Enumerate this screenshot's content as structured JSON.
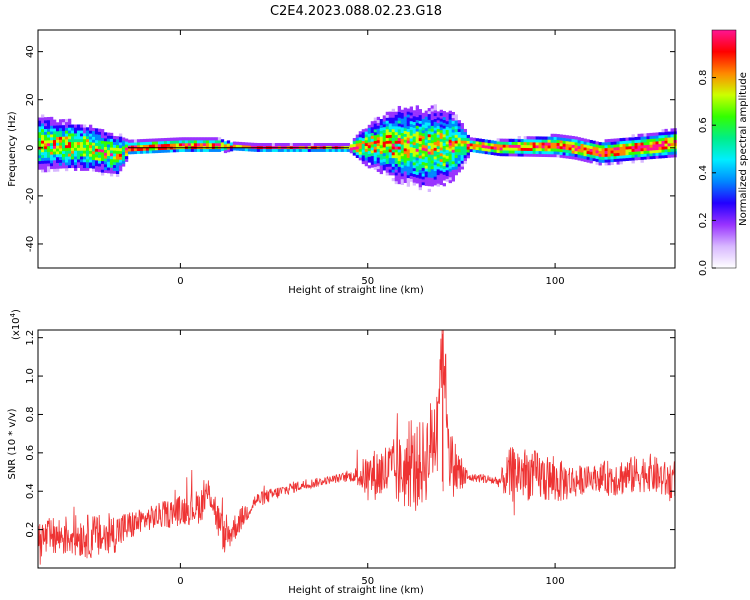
{
  "figure": {
    "title": "C2E4.2023.088.02.23.G18"
  },
  "colors": {
    "snr_line": "#ee3333",
    "axis": "#000000",
    "background": "#ffffff",
    "colormap": [
      "#ffffff",
      "#d8b8ff",
      "#9933ff",
      "#2200ff",
      "#0088ff",
      "#00eeff",
      "#00ee88",
      "#33ff00",
      "#ccff00",
      "#ff8800",
      "#ff0000",
      "#ff1493"
    ]
  },
  "chart_data": [
    {
      "type": "heatmap",
      "title": "",
      "xlabel": "Height of straight line (km)",
      "ylabel": "Frequency (Hz)",
      "xlim": [
        -38,
        132
      ],
      "ylim": [
        -50,
        49
      ],
      "xticks": [
        0,
        50,
        100
      ],
      "yticks": [
        -40,
        -20,
        0,
        20,
        40
      ],
      "ridge": [
        {
          "x": -38,
          "f": 2
        },
        {
          "x": -30,
          "f": 1
        },
        {
          "x": -25,
          "f": 0
        },
        {
          "x": -20,
          "f": -2
        },
        {
          "x": -17,
          "f": -3
        },
        {
          "x": -14,
          "f": 0
        },
        {
          "x": 0,
          "f": 1
        },
        {
          "x": 10,
          "f": 1
        },
        {
          "x": 20,
          "f": 0
        },
        {
          "x": 45,
          "f": 0
        },
        {
          "x": 55,
          "f": 2
        },
        {
          "x": 65,
          "f": 0
        },
        {
          "x": 75,
          "f": 1
        },
        {
          "x": 77,
          "f": 1
        },
        {
          "x": 85,
          "f": 0
        },
        {
          "x": 100,
          "f": 1
        },
        {
          "x": 105,
          "f": 0
        },
        {
          "x": 112,
          "f": -2
        },
        {
          "x": 122,
          "f": 0
        },
        {
          "x": 132,
          "f": 2
        }
      ],
      "spread": [
        {
          "x": -38,
          "w": 8
        },
        {
          "x": -17,
          "w": 6
        },
        {
          "x": -14,
          "w": 2
        },
        {
          "x": 5,
          "w": 2
        },
        {
          "x": 10,
          "w": 2
        },
        {
          "x": 14,
          "w": 1
        },
        {
          "x": 45,
          "w": 1
        },
        {
          "x": 48,
          "w": 5
        },
        {
          "x": 58,
          "w": 11
        },
        {
          "x": 67,
          "w": 12
        },
        {
          "x": 73,
          "w": 10
        },
        {
          "x": 77,
          "w": 2
        },
        {
          "x": 100,
          "w": 3
        },
        {
          "x": 105,
          "w": 3
        },
        {
          "x": 132,
          "w": 4
        }
      ],
      "colorbar": {
        "label": "Normalized spectral amplitude",
        "range": [
          0,
          1
        ],
        "ticks": [
          "0.0",
          "0.2",
          "0.4",
          "0.6",
          "0.8"
        ]
      }
    },
    {
      "type": "line",
      "title": "",
      "xlabel": "Height of straight line (km)",
      "ylabel": "SNR (10 * v/v)",
      "multiplier": "(x10",
      "multiplier_exp": "4",
      "multiplier_close": ")",
      "xlim": [
        -38,
        132
      ],
      "ylim": [
        0,
        1.24
      ],
      "xticks": [
        0,
        50,
        100
      ],
      "yticks": [
        "0.2",
        "0.4",
        "0.6",
        "0.8",
        "1.0",
        "1.2"
      ],
      "series": [
        {
          "x": [
            -38,
            -30,
            -20,
            -10,
            0,
            5,
            8,
            10,
            12,
            20,
            30,
            40,
            46,
            50,
            55,
            60,
            65,
            68,
            70,
            72,
            75,
            77,
            80,
            85,
            90,
            95,
            100,
            105,
            110,
            115,
            120,
            125,
            130,
            132
          ],
          "y": [
            0.15,
            0.17,
            0.16,
            0.25,
            0.3,
            0.32,
            0.4,
            0.25,
            0.15,
            0.35,
            0.42,
            0.46,
            0.48,
            0.48,
            0.5,
            0.5,
            0.55,
            0.7,
            1.22,
            0.55,
            0.48,
            0.47,
            0.47,
            0.45,
            0.5,
            0.48,
            0.45,
            0.45,
            0.47,
            0.47,
            0.48,
            0.5,
            0.45,
            0.47
          ],
          "amplitude": [
            {
              "x": -38,
              "a": 0.1
            },
            {
              "x": -20,
              "a": 0.12
            },
            {
              "x": -10,
              "a": 0.06
            },
            {
              "x": 10,
              "a": 0.1
            },
            {
              "x": 20,
              "a": 0.04
            },
            {
              "x": 40,
              "a": 0.02
            },
            {
              "x": 46,
              "a": 0.03
            },
            {
              "x": 50,
              "a": 0.12
            },
            {
              "x": 60,
              "a": 0.2
            },
            {
              "x": 68,
              "a": 0.25
            },
            {
              "x": 75,
              "a": 0.12
            },
            {
              "x": 77,
              "a": 0.02
            },
            {
              "x": 85,
              "a": 0.03
            },
            {
              "x": 88,
              "a": 0.15
            },
            {
              "x": 100,
              "a": 0.12
            },
            {
              "x": 110,
              "a": 0.06
            },
            {
              "x": 115,
              "a": 0.1
            },
            {
              "x": 132,
              "a": 0.1
            }
          ]
        }
      ]
    }
  ]
}
